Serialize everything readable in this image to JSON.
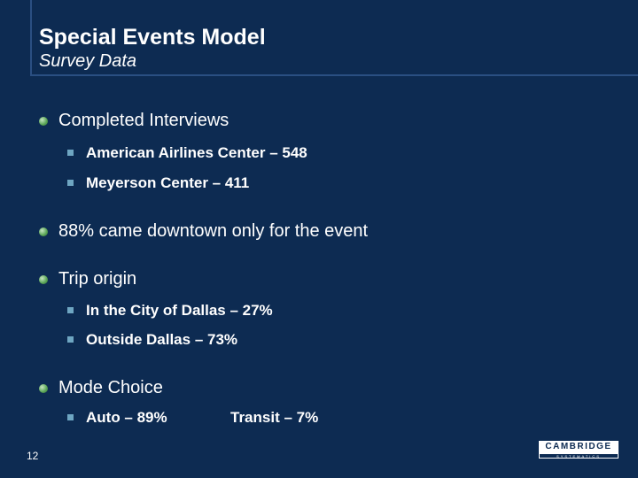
{
  "slide": {
    "title": "Special Events Model",
    "subtitle": "Survey Data",
    "bullets": [
      {
        "text": "Completed Interviews",
        "subitems": [
          "American Airlines Center – 548",
          "Meyerson Center – 411"
        ]
      },
      {
        "text": "88% came downtown only for the event",
        "subitems": []
      },
      {
        "text": "Trip origin",
        "subitems": [
          "In the City of Dallas – 27%",
          "Outside Dallas – 73%"
        ]
      },
      {
        "text": "Mode Choice",
        "subitems": [
          "Auto – 89%",
          "Transit – 7%"
        ]
      }
    ],
    "page_number": "12",
    "logo": {
      "name": "CAMBRIDGE",
      "tagline": "SYSTEMATICS"
    }
  }
}
